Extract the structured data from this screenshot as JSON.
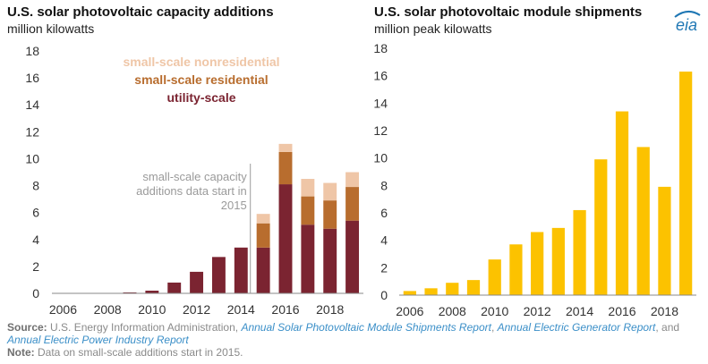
{
  "left": {
    "title": "U.S. solar photovoltaic capacity additions",
    "units": "million kilowatts",
    "annotation": [
      "small-scale capacity",
      "additions data start in",
      "2015"
    ]
  },
  "right": {
    "title": "U.S. solar photovoltaic module shipments",
    "units": "million peak kilowatts"
  },
  "source": {
    "label": "Source:",
    "prefix": " U.S. Energy Information Administration, ",
    "link1": "Annual Solar Photovoltaic Module Shipments Report",
    "sep1": ", ",
    "link2": "Annual Electric Generator Report",
    "sep2": ", and ",
    "link3": "Annual Electric Power Industry Report",
    "note_label": "Note:",
    "note_text": " Data on small-scale additions start in 2015."
  },
  "logo": {
    "text": "eia",
    "color": "#1f77b4"
  },
  "colors": {
    "utility": "#7b2431",
    "residential": "#b86d2e",
    "nonresidential": "#efc6a7",
    "shipments": "#fcc200",
    "axis": "#888888",
    "annotation": "#9a9a9a"
  },
  "chart_data": [
    {
      "type": "bar",
      "stacked": true,
      "title": "U.S. solar photovoltaic capacity additions",
      "ylabel": "million kilowatts",
      "x": [
        2006,
        2007,
        2008,
        2009,
        2010,
        2011,
        2012,
        2013,
        2014,
        2015,
        2016,
        2017,
        2018,
        2019
      ],
      "xticks": [
        2006,
        2008,
        2010,
        2012,
        2014,
        2016,
        2018
      ],
      "ylim": [
        0,
        18
      ],
      "yticks": [
        0,
        2,
        4,
        6,
        8,
        10,
        12,
        14,
        16,
        18
      ],
      "legend_position": "top-center",
      "series": [
        {
          "name": "utility-scale",
          "color": "#7b2431",
          "values": [
            0.01,
            0.02,
            0.03,
            0.07,
            0.2,
            0.8,
            1.6,
            2.7,
            3.4,
            3.4,
            8.1,
            5.1,
            4.8,
            5.4
          ]
        },
        {
          "name": "small-scale residential",
          "color": "#b86d2e",
          "values": [
            null,
            null,
            null,
            null,
            null,
            null,
            null,
            null,
            null,
            1.8,
            2.4,
            2.1,
            2.1,
            2.5
          ]
        },
        {
          "name": "small-scale nonresidential",
          "color": "#efc6a7",
          "values": [
            null,
            null,
            null,
            null,
            null,
            null,
            null,
            null,
            null,
            0.7,
            0.6,
            1.3,
            1.3,
            1.1
          ]
        }
      ]
    },
    {
      "type": "bar",
      "title": "U.S. solar photovoltaic module shipments",
      "ylabel": "million peak kilowatts",
      "x": [
        2006,
        2007,
        2008,
        2009,
        2010,
        2011,
        2012,
        2013,
        2014,
        2015,
        2016,
        2017,
        2018,
        2019
      ],
      "xticks": [
        2006,
        2008,
        2010,
        2012,
        2014,
        2016,
        2018
      ],
      "ylim": [
        0,
        18
      ],
      "yticks": [
        0,
        2,
        4,
        6,
        8,
        10,
        12,
        14,
        16,
        18
      ],
      "series": [
        {
          "name": "",
          "color": "#fcc200",
          "values": [
            0.3,
            0.5,
            0.9,
            1.1,
            2.6,
            3.7,
            4.6,
            4.9,
            6.2,
            9.9,
            13.4,
            10.8,
            7.9,
            16.3
          ]
        }
      ]
    }
  ]
}
